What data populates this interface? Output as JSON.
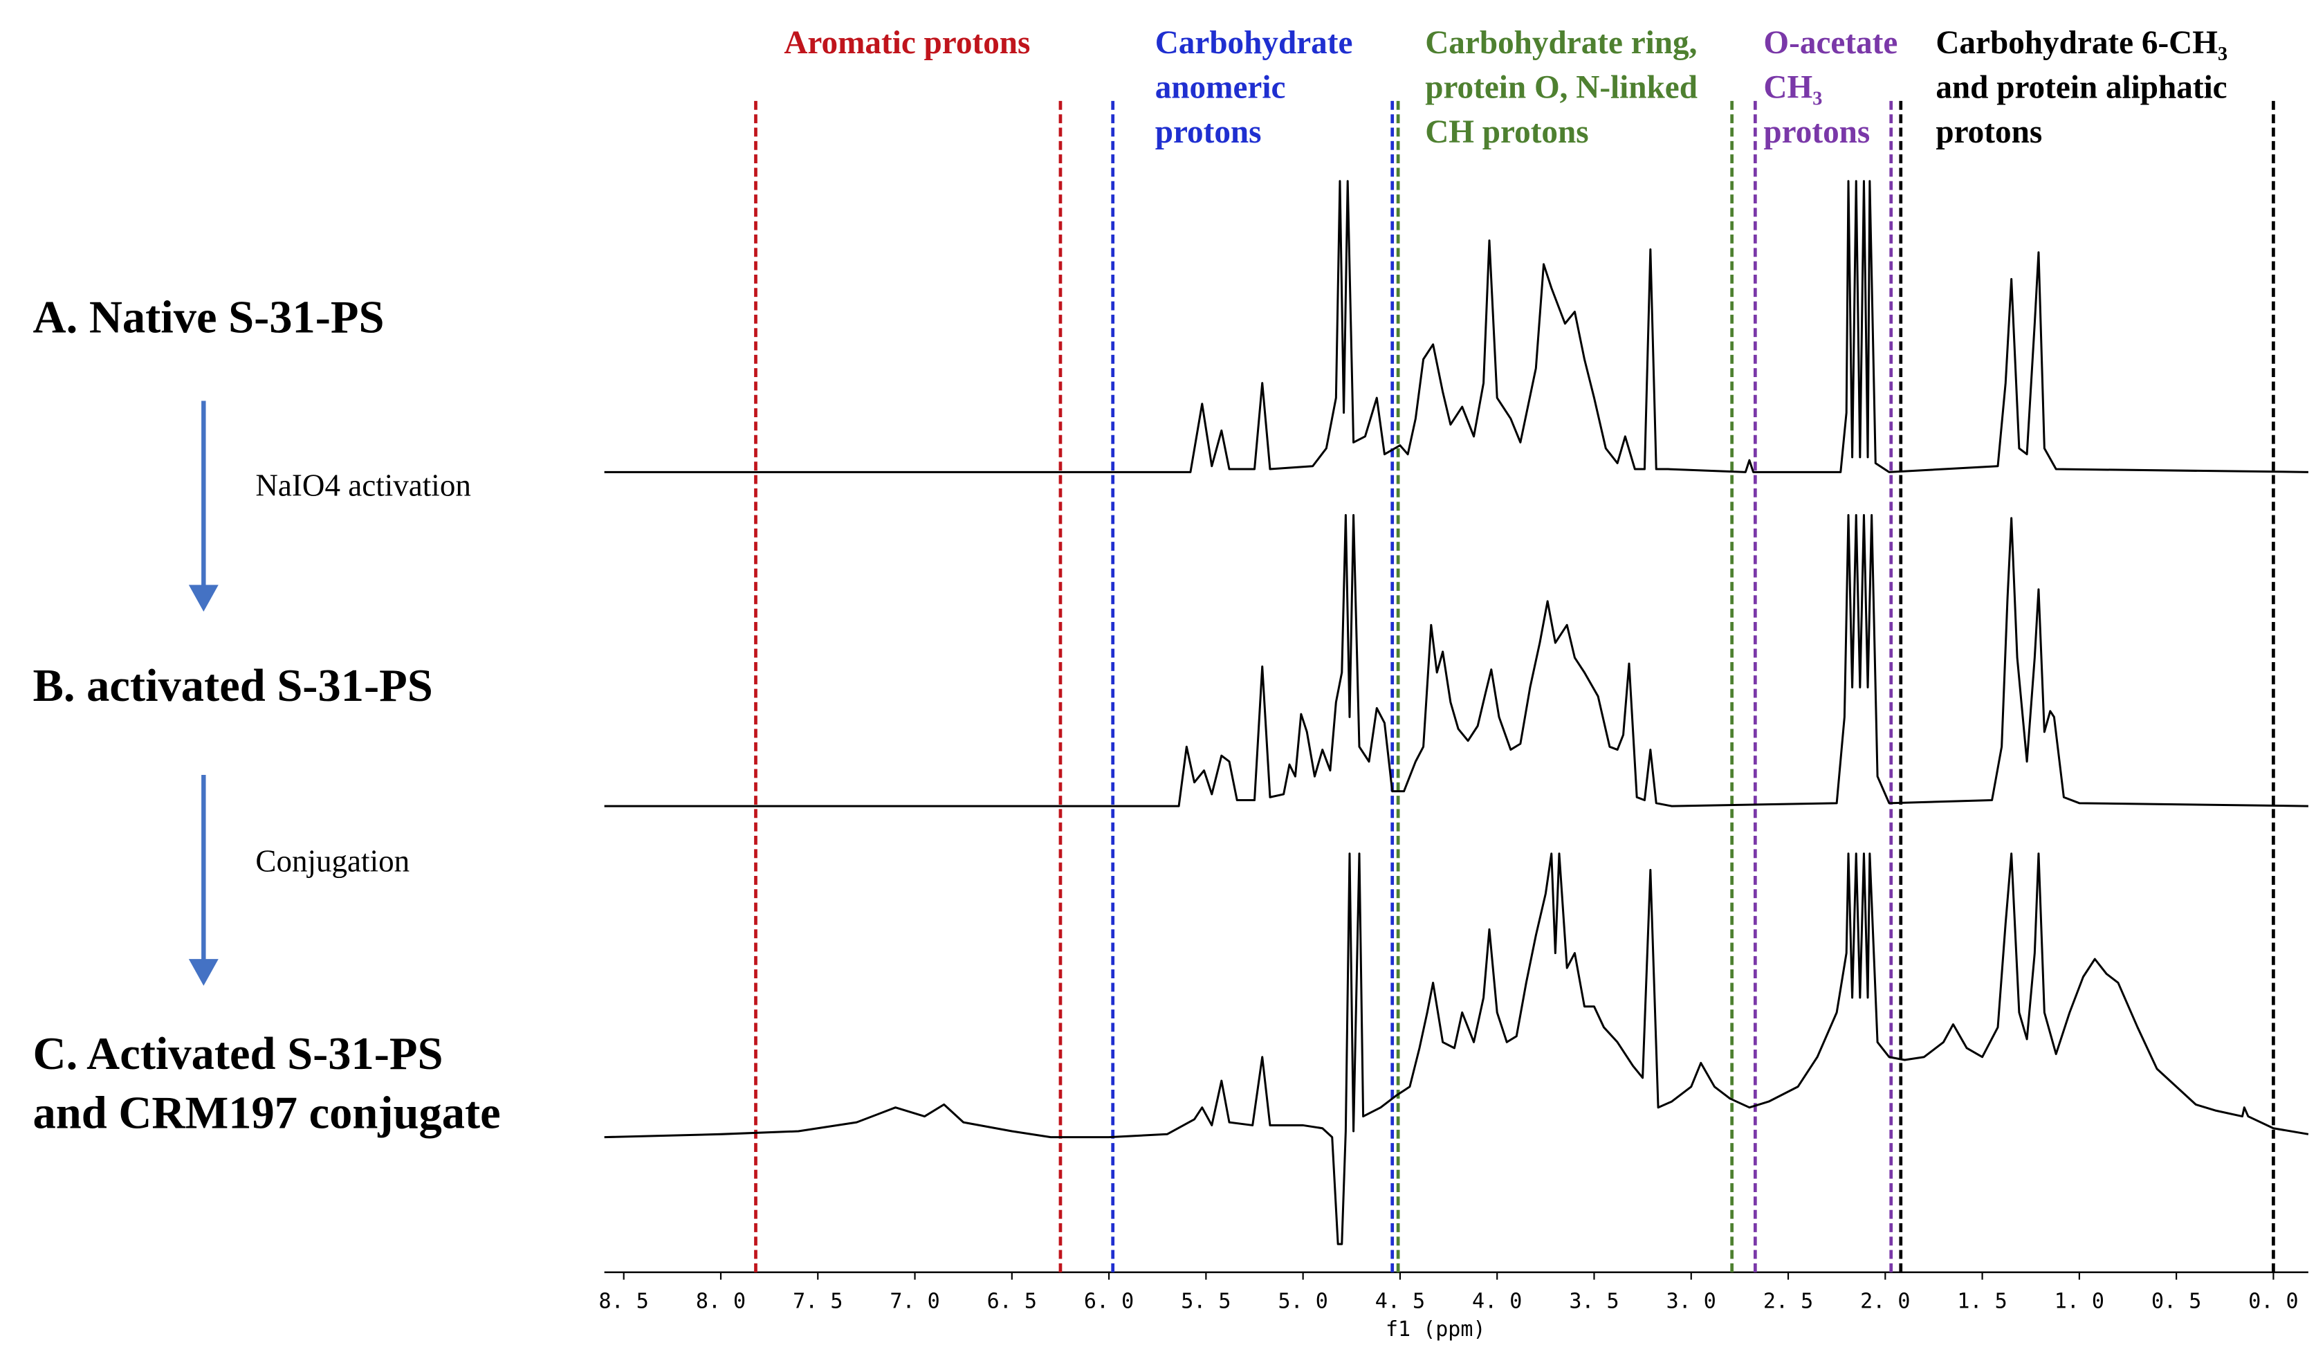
{
  "chart_data": {
    "type": "line",
    "xlabel": "f1 (ppm)",
    "xlim": [
      8.6,
      -0.18
    ],
    "xticks": [
      {
        "value": 8.5,
        "label": "8. 5"
      },
      {
        "value": 8,
        "label": "8. 0"
      },
      {
        "value": 7.5,
        "label": "7. 5"
      },
      {
        "value": 7,
        "label": "7. 0"
      },
      {
        "value": 6.5,
        "label": "6. 5"
      },
      {
        "value": 6,
        "label": "6. 0"
      },
      {
        "value": 5.5,
        "label": "5. 5"
      },
      {
        "value": 5,
        "label": "5. 0"
      },
      {
        "value": 4.5,
        "label": "4. 5"
      },
      {
        "value": 4,
        "label": "4. 0"
      },
      {
        "value": 3.5,
        "label": "3. 5"
      },
      {
        "value": 3,
        "label": "3. 0"
      },
      {
        "value": 2.5,
        "label": "2. 5"
      },
      {
        "value": 2,
        "label": "2. 0"
      },
      {
        "value": 1.5,
        "label": "1. 5"
      },
      {
        "value": 1,
        "label": "1. 0"
      },
      {
        "value": 0.5,
        "label": "0. 5"
      },
      {
        "value": 0,
        "label": "0. 0"
      }
    ],
    "steps": [
      "NaIO4 activation",
      "Conjugation"
    ],
    "regions": [
      {
        "label": [
          "Aromatic protons"
        ],
        "color": "#c0141c",
        "lines": [
          7.82,
          6.25
        ]
      },
      {
        "label": [
          "Carbohydrate",
          "anomeric",
          "protons"
        ],
        "color": "#1f2fd0",
        "lines": [
          5.98,
          4.54
        ]
      },
      {
        "label": [
          "Carbohydrate ring,",
          "protein O, N-linked",
          "CH protons"
        ],
        "color": "#4e8030",
        "lines": [
          4.51,
          2.79
        ]
      },
      {
        "label": [
          "O-acetate",
          "CH₃",
          "protons"
        ],
        "color": "#7a38a8",
        "lines": [
          2.67,
          1.97
        ]
      },
      {
        "label": [
          "Carbohydrate 6-CH₃",
          "and protein aliphatic",
          "protons"
        ],
        "color": "#000000",
        "lines": [
          1.92,
          0
        ]
      }
    ],
    "series": [
      {
        "name": "A. Native S-31-PS",
        "color": "#000000",
        "x": [
          8.6,
          5.58,
          5.52,
          5.47,
          5.42,
          5.38,
          5.25,
          5.21,
          5.17,
          4.95,
          4.88,
          4.83,
          4.81,
          4.79,
          4.77,
          4.74,
          4.68,
          4.62,
          4.58,
          4.5,
          4.46,
          4.42,
          4.38,
          4.33,
          4.28,
          4.24,
          4.18,
          4.12,
          4.07,
          4.04,
          4.0,
          3.93,
          3.88,
          3.8,
          3.76,
          3.72,
          3.65,
          3.6,
          3.55,
          3.5,
          3.44,
          3.38,
          3.34,
          3.29,
          3.24,
          3.21,
          3.18,
          3.12,
          2.72,
          2.7,
          2.68,
          2.23,
          2.2,
          2.19,
          2.17,
          2.15,
          2.13,
          2.11,
          2.09,
          2.08,
          2.05,
          1.98,
          1.42,
          1.38,
          1.35,
          1.31,
          1.27,
          1.23,
          1.21,
          1.18,
          1.12,
          -0.18
        ],
        "values": [
          0,
          0,
          23,
          2,
          14,
          1,
          1,
          30,
          1,
          2,
          8,
          25,
          98,
          20,
          98,
          10,
          12,
          25,
          6,
          9,
          6,
          18,
          38,
          43,
          27,
          16,
          22,
          12,
          30,
          78,
          25,
          18,
          10,
          35,
          70,
          62,
          50,
          54,
          38,
          25,
          8,
          3,
          12,
          1,
          1,
          75,
          1,
          1,
          0,
          4,
          0,
          0,
          20,
          98,
          5,
          98,
          5,
          98,
          5,
          98,
          3,
          0,
          2,
          30,
          65,
          8,
          6,
          50,
          74,
          8,
          1,
          0
        ]
      },
      {
        "name": "B. activated S-31-PS",
        "color": "#000000",
        "x": [
          8.6,
          5.64,
          5.6,
          5.56,
          5.51,
          5.47,
          5.42,
          5.38,
          5.34,
          5.25,
          5.21,
          5.17,
          5.1,
          5.07,
          5.04,
          5.01,
          4.98,
          4.94,
          4.9,
          4.86,
          4.83,
          4.8,
          4.78,
          4.76,
          4.74,
          4.71,
          4.66,
          4.62,
          4.58,
          4.54,
          4.48,
          4.42,
          4.38,
          4.34,
          4.31,
          4.28,
          4.24,
          4.2,
          4.15,
          4.1,
          4.06,
          4.03,
          3.99,
          3.93,
          3.88,
          3.83,
          3.78,
          3.74,
          3.7,
          3.64,
          3.6,
          3.55,
          3.48,
          3.42,
          3.38,
          3.35,
          3.32,
          3.28,
          3.24,
          3.21,
          3.18,
          3.1,
          2.25,
          2.21,
          2.19,
          2.17,
          2.15,
          2.13,
          2.11,
          2.09,
          2.07,
          2.04,
          1.98,
          1.45,
          1.4,
          1.37,
          1.35,
          1.32,
          1.27,
          1.23,
          1.21,
          1.18,
          1.15,
          1.13,
          1.08,
          1.0,
          -0.18
        ],
        "values": [
          0,
          0,
          20,
          8,
          12,
          4,
          17,
          15,
          2,
          2,
          47,
          3,
          4,
          14,
          10,
          31,
          25,
          10,
          19,
          12,
          35,
          45,
          98,
          30,
          98,
          20,
          15,
          33,
          28,
          5,
          5,
          15,
          20,
          61,
          45,
          52,
          35,
          26,
          22,
          27,
          38,
          46,
          30,
          19,
          21,
          40,
          55,
          69,
          55,
          61,
          50,
          45,
          37,
          20,
          19,
          24,
          48,
          3,
          2,
          19,
          1,
          0,
          1,
          30,
          98,
          40,
          98,
          40,
          98,
          40,
          98,
          10,
          1,
          2,
          20,
          70,
          97,
          50,
          15,
          50,
          73,
          25,
          32,
          30,
          3,
          1,
          0
        ]
      },
      {
        "name": "C. Activated S-31-PS\nand CRM197 conjugate",
        "color": "#000000",
        "x": [
          8.6,
          8.0,
          7.6,
          7.3,
          7.1,
          6.95,
          6.85,
          6.75,
          6.5,
          6.3,
          6.0,
          5.7,
          5.56,
          5.52,
          5.47,
          5.42,
          5.38,
          5.26,
          5.21,
          5.17,
          5.0,
          4.9,
          4.85,
          4.82,
          4.8,
          4.78,
          4.76,
          4.74,
          4.71,
          4.69,
          4.6,
          4.52,
          4.45,
          4.4,
          4.36,
          4.33,
          4.28,
          4.22,
          4.18,
          4.12,
          4.07,
          4.04,
          4.0,
          3.95,
          3.9,
          3.85,
          3.8,
          3.75,
          3.72,
          3.7,
          3.68,
          3.64,
          3.6,
          3.55,
          3.5,
          3.45,
          3.38,
          3.3,
          3.25,
          3.21,
          3.17,
          3.1,
          3.0,
          2.95,
          2.88,
          2.8,
          2.7,
          2.6,
          2.45,
          2.35,
          2.25,
          2.2,
          2.19,
          2.17,
          2.15,
          2.13,
          2.11,
          2.09,
          2.08,
          2.04,
          1.98,
          1.9,
          1.8,
          1.7,
          1.65,
          1.58,
          1.5,
          1.42,
          1.38,
          1.35,
          1.31,
          1.27,
          1.23,
          1.21,
          1.18,
          1.12,
          1.05,
          0.98,
          0.92,
          0.86,
          0.8,
          0.7,
          0.6,
          0.5,
          0.4,
          0.3,
          0.16,
          0.15,
          0.13,
          0.0,
          -0.18
        ],
        "values": [
          -2,
          -1,
          0,
          3,
          8,
          5,
          9,
          3,
          0,
          -2,
          -2,
          -1,
          4,
          8,
          2,
          17,
          3,
          2,
          25,
          2,
          2,
          1,
          -2,
          -38,
          -38,
          0,
          93.5,
          0,
          93.5,
          5,
          8,
          12,
          15,
          28,
          40,
          50,
          30,
          28,
          40,
          30,
          45,
          68,
          40,
          30,
          32,
          50,
          66,
          80,
          93.5,
          60,
          93.5,
          55,
          60,
          42,
          42,
          35,
          30,
          22,
          18,
          88,
          8,
          10,
          15,
          23,
          15,
          11,
          8,
          10,
          15,
          25,
          40,
          60,
          93.5,
          45,
          93.5,
          45,
          93.5,
          45,
          93.5,
          30,
          25,
          24,
          25,
          30,
          36,
          28,
          25,
          35,
          70,
          93.5,
          40,
          31,
          60,
          93.5,
          40,
          26,
          40,
          52,
          58,
          53,
          50,
          35,
          21,
          15,
          9,
          7,
          5,
          8,
          5,
          1,
          -1
        ]
      }
    ]
  }
}
